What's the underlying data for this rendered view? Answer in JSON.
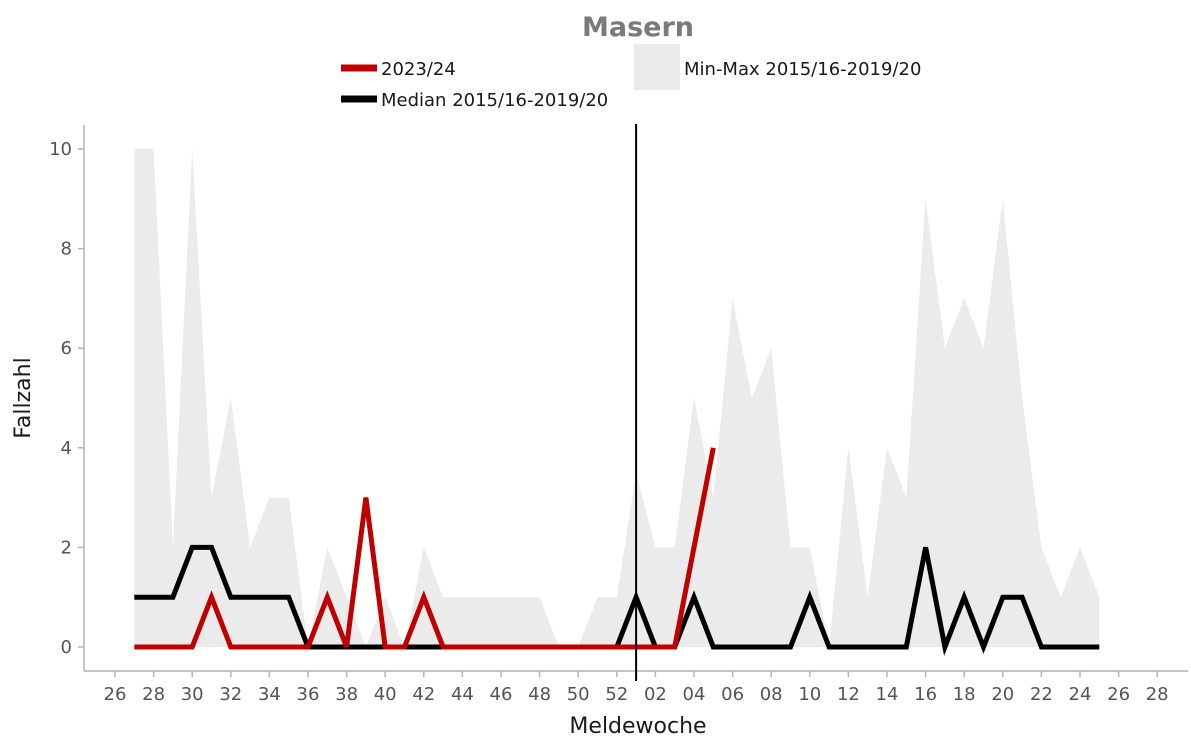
{
  "chart_data": {
    "type": "line",
    "title": "Masern",
    "xlabel": "Meldewoche",
    "ylabel": "Fallzahl",
    "ylim": [
      0,
      10.5
    ],
    "y_ticks": [
      "0",
      "2",
      "4",
      "6",
      "8",
      "10"
    ],
    "x_tick_labels": [
      "26",
      "28",
      "30",
      "32",
      "34",
      "36",
      "38",
      "40",
      "42",
      "44",
      "46",
      "48",
      "50",
      "52",
      "02",
      "04",
      "06",
      "08",
      "10",
      "12",
      "14",
      "16",
      "18",
      "20",
      "22",
      "24",
      "26",
      "28"
    ],
    "weeks": [
      "27",
      "28",
      "29",
      "30",
      "31",
      "32",
      "33",
      "34",
      "35",
      "36",
      "37",
      "38",
      "39",
      "40",
      "41",
      "42",
      "43",
      "44",
      "45",
      "46",
      "47",
      "48",
      "49",
      "50",
      "51",
      "52",
      "01",
      "02",
      "03",
      "04",
      "05",
      "06",
      "07",
      "08",
      "09",
      "10",
      "11",
      "12",
      "13",
      "14",
      "15",
      "16",
      "17",
      "18",
      "19",
      "20",
      "21",
      "22",
      "23",
      "24",
      "25"
    ],
    "year_boundary_label": "01",
    "legend_position": "top",
    "grid": false,
    "colors": {
      "current": "#c00000",
      "median": "#000000",
      "range": "#ebebeb"
    },
    "series": [
      {
        "name": "2023/24",
        "values": [
          0,
          0,
          0,
          0,
          1,
          0,
          0,
          0,
          0,
          0,
          1,
          0,
          3,
          0,
          0,
          1,
          0,
          0,
          0,
          0,
          0,
          0,
          0,
          0,
          0,
          0,
          0,
          0,
          0,
          2,
          4
        ]
      },
      {
        "name": "Median 2015/16-2019/20",
        "values": [
          1,
          1,
          1,
          2,
          2,
          1,
          1,
          1,
          1,
          0,
          0,
          0,
          0,
          0,
          0,
          0,
          0,
          0,
          0,
          0,
          0,
          0,
          0,
          0,
          0,
          0,
          1,
          0,
          0,
          1,
          0,
          0,
          0,
          0,
          0,
          1,
          0,
          0,
          0,
          0,
          0,
          2,
          0,
          1,
          0,
          1,
          1,
          0,
          0,
          0,
          0
        ]
      }
    ],
    "range_band": {
      "name": "Min-Max 2015/16-2019/20",
      "min": [
        0,
        0,
        0,
        0,
        0,
        0,
        0,
        0,
        0,
        0,
        0,
        0,
        0,
        0,
        0,
        0,
        0,
        0,
        0,
        0,
        0,
        0,
        0,
        0,
        0,
        0,
        0,
        0,
        0,
        0,
        0,
        0,
        0,
        0,
        0,
        0,
        0,
        0,
        0,
        0,
        0,
        0,
        0,
        0,
        0,
        0,
        0,
        0,
        0,
        0,
        0
      ],
      "max": [
        10,
        10,
        2,
        10,
        3,
        5,
        2,
        3,
        3,
        0,
        2,
        1,
        0,
        1,
        0,
        2,
        1,
        1,
        1,
        1,
        1,
        1,
        0,
        0,
        1,
        1,
        3.5,
        2,
        2,
        5,
        3,
        7,
        5,
        6,
        2,
        2,
        0,
        4,
        1,
        4,
        3,
        9,
        6,
        7,
        6,
        9,
        5,
        2,
        1,
        2,
        1
      ]
    }
  }
}
